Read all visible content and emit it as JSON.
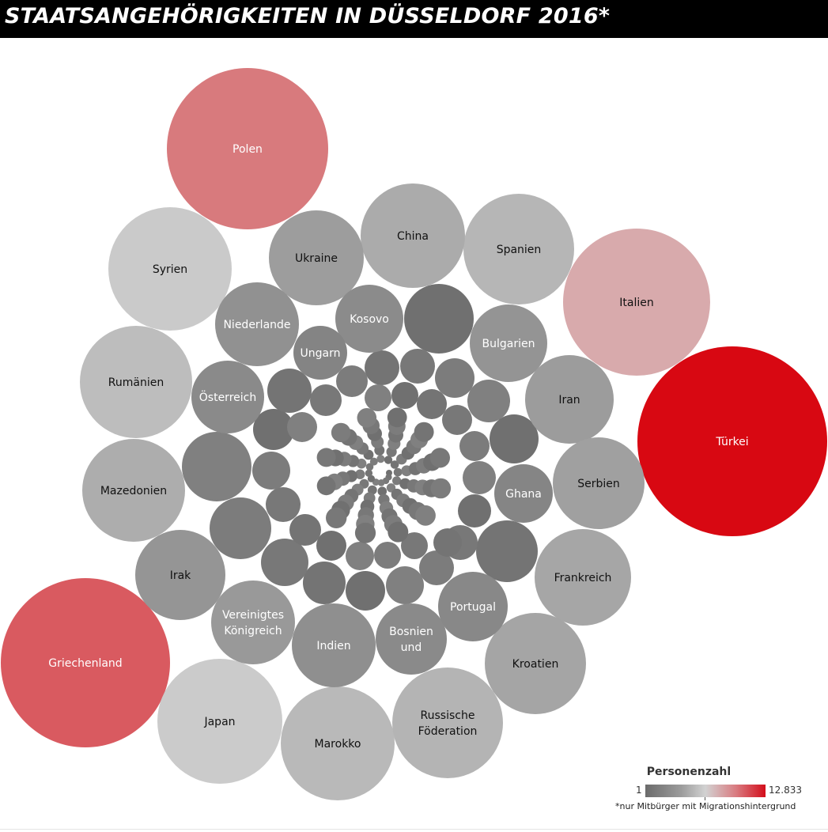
{
  "header": {
    "title": "STAATSANGEHÖRIGKEITEN IN DÜSSELDORF 2016*"
  },
  "legend": {
    "title": "Personenzahl",
    "min_label": "1",
    "max_label": "12.833",
    "footnote": "*nur Mitbürger mit Migrationshintergrund",
    "colors": {
      "low": "#6b6b6b",
      "mid": "#d2d2d2",
      "high": "#d30e1b"
    }
  },
  "chart_data": {
    "type": "packed-bubble",
    "color_measure": "Personenzahl",
    "value_range": [
      1,
      12833
    ],
    "bubbles": [
      {
        "label": "Türkei",
        "value": 12833,
        "color": "#d80812",
        "text_color": "#ffffff"
      },
      {
        "label": "Griechenland",
        "value": 8700,
        "color": "#d95a60",
        "text_color": "#ffffff"
      },
      {
        "label": "Polen",
        "value": 8000,
        "color": "#d87a7d",
        "text_color": "#ffffff"
      },
      {
        "label": "Italien",
        "value": 6600,
        "color": "#d8aaac",
        "text_color": "#111111"
      },
      {
        "label": "Marokko",
        "value": 3800,
        "color": "#b9b9b9",
        "text_color": "#111111"
      },
      {
        "label": "Japan",
        "value": 4600,
        "color": "#cbcbcb",
        "text_color": "#111111"
      },
      {
        "label": "Syrien",
        "value": 4500,
        "color": "#cacaca",
        "text_color": "#111111"
      },
      {
        "label": "Rumänien",
        "value": 3700,
        "color": "#bdbdbd",
        "text_color": "#111111"
      },
      {
        "label": "Russische\nFöderation",
        "value": 3600,
        "color": "#b4b4b4",
        "text_color": "#111111"
      },
      {
        "label": "Spanien",
        "value": 3500,
        "color": "#b6b6b6",
        "text_color": "#111111"
      },
      {
        "label": "China",
        "value": 3300,
        "color": "#ababab",
        "text_color": "#111111"
      },
      {
        "label": "Mazedonien",
        "value": 3100,
        "color": "#adadad",
        "text_color": "#111111"
      },
      {
        "label": "Frankreich",
        "value": 3000,
        "color": "#a6a6a6",
        "text_color": "#111111"
      },
      {
        "label": "Kroatien",
        "value": 2900,
        "color": "#a5a5a5",
        "text_color": "#111111"
      },
      {
        "label": "Ukraine",
        "value": 2800,
        "color": "#9d9d9d",
        "text_color": "#111111"
      },
      {
        "label": "Iran",
        "value": 2650,
        "color": "#9c9c9c",
        "text_color": "#111111"
      },
      {
        "label": "Serbien",
        "value": 2600,
        "color": "#a0a0a0",
        "text_color": "#111111"
      },
      {
        "label": "Irak",
        "value": 2500,
        "color": "#959595",
        "text_color": "#111111"
      },
      {
        "label": "Indien",
        "value": 2450,
        "color": "#8f8f8f",
        "text_color": "#ffffff"
      },
      {
        "label": "Vereinigtes\nKönigreich",
        "value": 2400,
        "color": "#999999",
        "text_color": "#ffffff"
      },
      {
        "label": "Niederlande",
        "value": 2300,
        "color": "#919191",
        "text_color": "#ffffff"
      },
      {
        "label": "Bulgarien",
        "value": 2200,
        "color": "#949494",
        "text_color": "#ffffff"
      },
      {
        "label": "Bosnien\nund",
        "value": 1800,
        "color": "#8a8a8a",
        "text_color": "#ffffff"
      },
      {
        "label": "Kosovo",
        "value": 1700,
        "color": "#8b8b8b",
        "text_color": "#ffffff"
      },
      {
        "label": "Portugal",
        "value": 1700,
        "color": "#888888",
        "text_color": "#ffffff"
      },
      {
        "label": "Österreich",
        "value": 1650,
        "color": "#8a8a8a",
        "text_color": "#ffffff"
      },
      {
        "label": "Ghana",
        "value": 1200,
        "color": "#858585",
        "text_color": "#ffffff"
      },
      {
        "label": "Ungarn",
        "value": 1000,
        "color": "#848484",
        "text_color": "#ffffff"
      }
    ]
  }
}
